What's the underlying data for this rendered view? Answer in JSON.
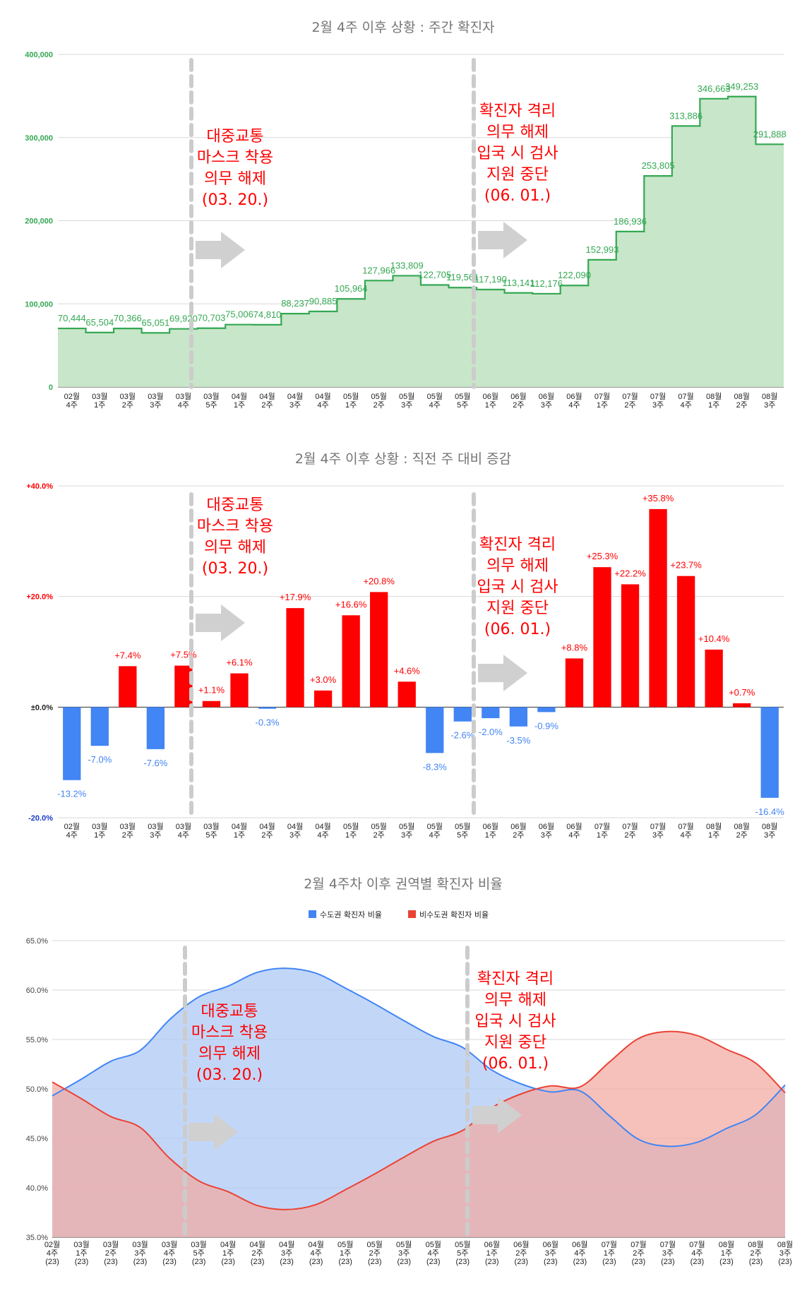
{
  "chart_data": [
    {
      "type": "area",
      "title": "2월 4주 이후 상황 : 주간 확진자",
      "categories": [
        "02월|4주",
        "03월|1주",
        "03월|2주",
        "03월|3주",
        "03월|4주",
        "03월|5주",
        "04월|1주",
        "04월|2주",
        "04월|3주",
        "04월|4주",
        "05월|1주",
        "05월|2주",
        "05월|3주",
        "05월|4주",
        "05월|5주",
        "06월|1주",
        "06월|2주",
        "06월|3주",
        "06월|4주",
        "07월|1주",
        "07월|2주",
        "07월|3주",
        "07월|4주",
        "08월|1주",
        "08월|2주",
        "08월|3주"
      ],
      "values": [
        70444,
        65504,
        70366,
        65051,
        69920,
        70703,
        75006,
        74810,
        88237,
        90885,
        105964,
        127966,
        133809,
        122705,
        119561,
        117190,
        113141,
        112176,
        122090,
        152993,
        186936,
        253805,
        313886,
        346663,
        349253,
        291888
      ],
      "value_labels": [
        "70,444",
        "65,504",
        "70,366",
        "65,051",
        "69,920",
        "70,703",
        "75,006",
        "74,810",
        "88,237",
        "90,885",
        "105,964",
        "127,966",
        "133,809",
        "122,705",
        "119,561",
        "117,190",
        "113,141",
        "112,176",
        "122,090",
        "152,993",
        "186,936",
        "253,805",
        "313,886",
        "346,663",
        "349,253",
        "291,888"
      ],
      "yticks": [
        "0",
        "100,000",
        "200,000",
        "300,000",
        "400,000"
      ],
      "ylim": [
        0,
        400000
      ],
      "color": "#34a853",
      "fill": "#c8e6c9",
      "tick_color": "#34a853",
      "annotations": [
        {
          "lines": [
            "대중교통",
            "마스크 착용",
            "의무 해제",
            "(03. 20.)"
          ],
          "after_index": 4
        },
        {
          "lines": [
            "확진자 격리",
            "의무 해제",
            "입국 시 검사",
            "지원 중단",
            "(06. 01.)"
          ],
          "after_index": 14
        }
      ]
    },
    {
      "type": "bar",
      "title": "2월 4주 이후 상황 : 직전 주 대비 증감",
      "categories": [
        "02월|4주",
        "03월|1주",
        "03월|2주",
        "03월|3주",
        "03월|4주",
        "03월|5주",
        "04월|1주",
        "04월|2주",
        "04월|3주",
        "04월|4주",
        "05월|1주",
        "05월|2주",
        "05월|3주",
        "05월|4주",
        "05월|5주",
        "06월|1주",
        "06월|2주",
        "06월|3주",
        "06월|4주",
        "07월|1주",
        "07월|2주",
        "07월|3주",
        "07월|4주",
        "08월|1주",
        "08월|2주",
        "08월|3주"
      ],
      "values": [
        -13.2,
        -7.0,
        7.4,
        -7.6,
        7.5,
        1.1,
        6.1,
        -0.3,
        17.9,
        3.0,
        16.6,
        20.8,
        4.6,
        -8.3,
        -2.6,
        -2.0,
        -3.5,
        -0.9,
        8.8,
        25.3,
        22.2,
        35.8,
        23.7,
        10.4,
        0.7,
        -16.4
      ],
      "value_labels": [
        "-13.2%",
        "-7.0%",
        "+7.4%",
        "-7.6%",
        "+7.5%",
        "+1.1%",
        "+6.1%",
        "-0.3%",
        "+17.9%",
        "+3.0%",
        "+16.6%",
        "+20.8%",
        "+4.6%",
        "-8.3%",
        "-2.6%",
        "-2.0%",
        "-3.5%",
        "-0.9%",
        "+8.8%",
        "+25.3%",
        "+22.2%",
        "+35.8%",
        "+23.7%",
        "+10.4%",
        "+0.7%",
        "-16.4%"
      ],
      "yticks": [
        "-20.0%",
        "±0.0%",
        "+20.0%",
        "+40.0%"
      ],
      "ylim": [
        -20,
        40
      ],
      "pos_color": "#ff0000",
      "neg_color": "#4285f4",
      "annotations": [
        {
          "lines": [
            "대중교통",
            "마스크 착용",
            "의무 해제",
            "(03. 20.)"
          ],
          "after_index": 4
        },
        {
          "lines": [
            "확진자 격리",
            "의무 해제",
            "입국 시 검사",
            "지원 중단",
            "(06. 01.)"
          ],
          "after_index": 14
        }
      ]
    },
    {
      "type": "area",
      "title": "2월 4주차 이후 권역별 확진자 비율",
      "categories": [
        "02월|4주|(23)",
        "03월|1주|(23)",
        "03월|2주|(23)",
        "03월|3주|(23)",
        "03월|4주|(23)",
        "03월|5주|(23)",
        "04월|1주|(23)",
        "04월|2주|(23)",
        "04월|3주|(23)",
        "04월|4주|(23)",
        "05월|1주|(23)",
        "05월|2주|(23)",
        "05월|3주|(23)",
        "05월|4주|(23)",
        "05월|5주|(23)",
        "06월|1주|(23)",
        "06월|2주|(23)",
        "06월|3주|(23)",
        "06월|4주|(23)",
        "07월|1주|(23)",
        "07월|2주|(23)",
        "07월|3주|(23)",
        "07월|4주|(23)",
        "08월|1주|(23)",
        "08월|2주|(23)",
        "08월|3주|(23)"
      ],
      "series": [
        {
          "name": "수도권 확진자 비율",
          "color": "#4285f4",
          "fill": "#aac7f5",
          "values": [
            49.3,
            51.0,
            52.8,
            53.9,
            57.0,
            59.3,
            60.4,
            61.8,
            62.2,
            61.7,
            60.2,
            58.6,
            56.9,
            55.3,
            54.2,
            51.9,
            50.5,
            49.7,
            49.8,
            47.3,
            44.9,
            44.2,
            44.6,
            46.0,
            47.4,
            50.4
          ]
        },
        {
          "name": "비수도권 확진자 비율",
          "color": "#ea4335",
          "fill": "#f2a9a1",
          "values": [
            50.7,
            49.0,
            47.2,
            46.1,
            43.0,
            40.7,
            39.6,
            38.2,
            37.8,
            38.3,
            39.8,
            41.4,
            43.1,
            44.7,
            45.8,
            48.1,
            49.5,
            50.3,
            50.2,
            52.7,
            55.1,
            55.8,
            55.4,
            54.0,
            52.6,
            49.6
          ]
        }
      ],
      "yticks": [
        "35.0%",
        "40.0%",
        "45.0%",
        "50.0%",
        "55.0%",
        "60.0%",
        "65.0%"
      ],
      "ylim": [
        35,
        65
      ],
      "annotations": [
        {
          "lines": [
            "대중교통",
            "마스크 착용",
            "의무 해제",
            "(03. 20.)"
          ],
          "after_index": 4
        },
        {
          "lines": [
            "확진자 격리",
            "의무 해제",
            "입국 시 검사",
            "지원 중단",
            "(06. 01.)"
          ],
          "after_index": 14
        }
      ]
    }
  ]
}
